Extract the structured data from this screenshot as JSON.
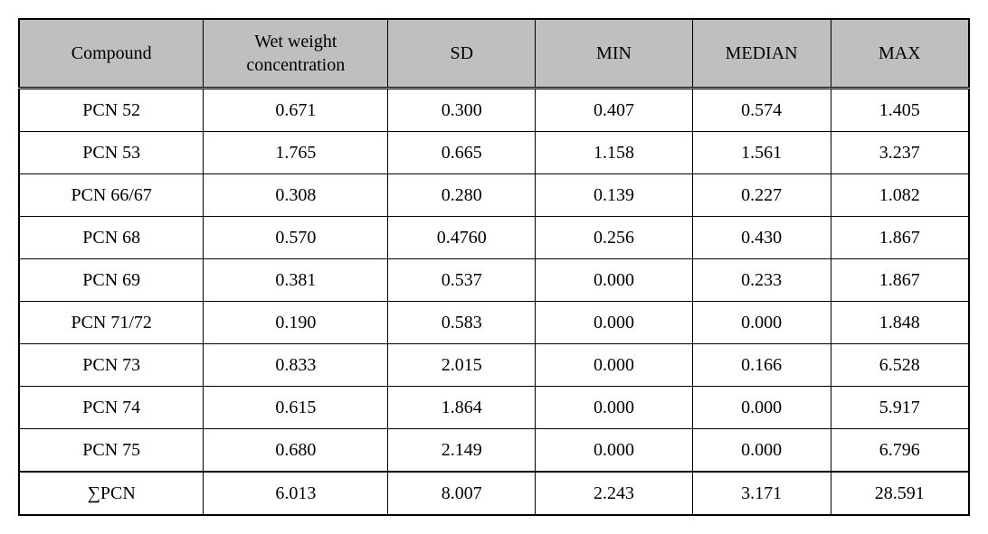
{
  "table": {
    "columns": [
      "Compound",
      "Wet weight\nconcentration",
      "SD",
      "MIN",
      "MEDIAN",
      "MAX"
    ],
    "rows": [
      [
        "PCN 52",
        "0.671",
        "0.300",
        "0.407",
        "0.574",
        "1.405"
      ],
      [
        "PCN 53",
        "1.765",
        "0.665",
        "1.158",
        "1.561",
        "3.237"
      ],
      [
        "PCN 66/67",
        "0.308",
        "0.280",
        "0.139",
        "0.227",
        "1.082"
      ],
      [
        "PCN 68",
        "0.570",
        "0.4760",
        "0.256",
        "0.430",
        "1.867"
      ],
      [
        "PCN 69",
        "0.381",
        "0.537",
        "0.000",
        "0.233",
        "1.867"
      ],
      [
        "PCN 71/72",
        "0.190",
        "0.583",
        "0.000",
        "0.000",
        "1.848"
      ],
      [
        "PCN 73",
        "0.833",
        "2.015",
        "0.000",
        "0.166",
        "6.528"
      ],
      [
        "PCN 74",
        "0.615",
        "1.864",
        "0.000",
        "0.000",
        "5.917"
      ],
      [
        "PCN 75",
        "0.680",
        "2.149",
        "0.000",
        "0.000",
        "6.796"
      ]
    ],
    "total_row": [
      "∑PCN",
      "6.013",
      "8.007",
      "2.243",
      "3.171",
      "28.591"
    ],
    "header_bg": "#bfbfbf",
    "border_color": "#000000",
    "font_family": "Times New Roman, Batang, serif",
    "cell_fontsize": 20
  }
}
